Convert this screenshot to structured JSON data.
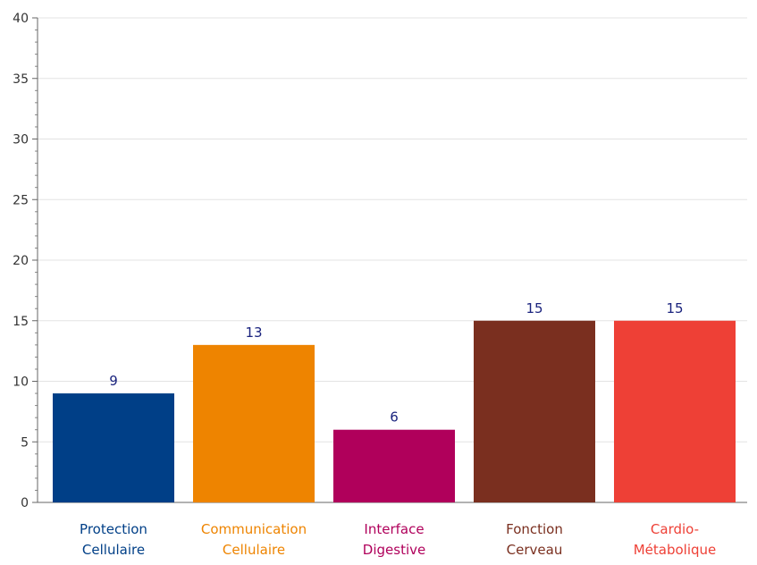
{
  "chart_data": {
    "type": "bar",
    "categories": [
      [
        "Protection",
        "Cellulaire"
      ],
      [
        "Communication",
        "Cellulaire"
      ],
      [
        "Interface",
        "Digestive"
      ],
      [
        "Fonction",
        "Cerveau"
      ],
      [
        "Cardio-",
        "Métabolique"
      ]
    ],
    "values": [
      9,
      13,
      6,
      15,
      15
    ],
    "value_labels": [
      "9",
      "13",
      "6",
      "15",
      "15"
    ],
    "ylim": [
      0,
      40
    ],
    "y_ticks": [
      0,
      5,
      10,
      15,
      20,
      25,
      30,
      35,
      40
    ],
    "y_tick_labels": [
      "0",
      "5",
      "10",
      "15",
      "20",
      "25",
      "30",
      "35",
      "40"
    ],
    "grid": true,
    "legend": "none",
    "colors": [
      "#003f87",
      "#ee8400",
      "#b0005b",
      "#7a2f1f",
      "#ee4036"
    ],
    "label_colors": [
      "#003f87",
      "#ee8400",
      "#b0005b",
      "#7a2f1f",
      "#ee4036"
    ],
    "data_label_color": "#1a237e"
  }
}
